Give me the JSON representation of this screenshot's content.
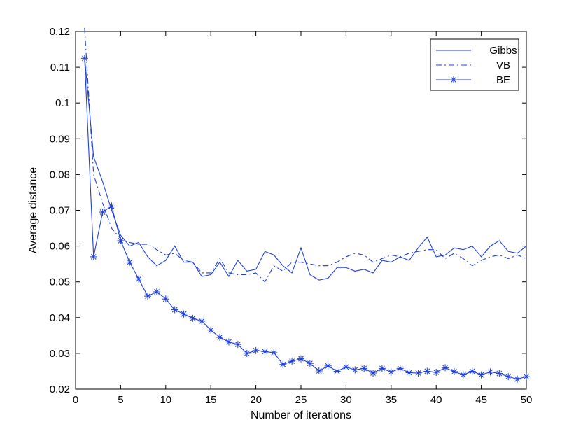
{
  "chart_data": {
    "type": "line",
    "title": "",
    "xlabel": "Number of iterations",
    "ylabel": "Average distance",
    "xlim": [
      0,
      50
    ],
    "ylim": [
      0.02,
      0.12
    ],
    "xticks": [
      0,
      5,
      10,
      15,
      20,
      25,
      30,
      35,
      40,
      45,
      50
    ],
    "yticks": [
      0.02,
      0.03,
      0.04,
      0.05,
      0.06,
      0.07,
      0.08,
      0.09,
      0.1,
      0.11,
      0.12
    ],
    "xtick_labels": [
      "0",
      "5",
      "10",
      "15",
      "20",
      "25",
      "30",
      "35",
      "40",
      "45",
      "50"
    ],
    "ytick_labels": [
      "0.02",
      "0.03",
      "0.04",
      "0.05",
      "0.06",
      "0.07",
      "0.08",
      "0.09",
      "0.1",
      "0.11",
      "0.12"
    ],
    "grid": false,
    "legend_position": "top-right",
    "line_color": "#1f3fd6",
    "x": [
      1,
      2,
      3,
      4,
      5,
      6,
      7,
      8,
      9,
      10,
      11,
      12,
      13,
      14,
      15,
      16,
      17,
      18,
      19,
      20,
      21,
      22,
      23,
      24,
      25,
      26,
      27,
      28,
      29,
      30,
      31,
      32,
      33,
      34,
      35,
      36,
      37,
      38,
      39,
      40,
      41,
      42,
      43,
      44,
      45,
      46,
      47,
      48,
      49,
      50
    ],
    "series": [
      {
        "name": "Gibbs",
        "style": "solid",
        "marker": "none",
        "values": [
          0.113,
          0.085,
          0.078,
          0.07,
          0.063,
          0.06,
          0.061,
          0.057,
          0.0545,
          0.056,
          0.06,
          0.0555,
          0.0555,
          0.0515,
          0.052,
          0.0555,
          0.0515,
          0.056,
          0.053,
          0.0535,
          0.0585,
          0.0575,
          0.0545,
          0.0525,
          0.0595,
          0.052,
          0.0505,
          0.051,
          0.054,
          0.054,
          0.053,
          0.0535,
          0.0525,
          0.056,
          0.0555,
          0.057,
          0.056,
          0.0595,
          0.0625,
          0.057,
          0.0575,
          0.0595,
          0.059,
          0.06,
          0.057,
          0.06,
          0.0615,
          0.0585,
          0.058,
          0.06
        ]
      },
      {
        "name": "VB",
        "style": "dashdot",
        "marker": "none",
        "values": [
          0.121,
          0.08,
          0.072,
          0.065,
          0.062,
          0.061,
          0.0605,
          0.0605,
          0.059,
          0.0575,
          0.058,
          0.056,
          0.0555,
          0.0525,
          0.0525,
          0.0565,
          0.0525,
          0.052,
          0.052,
          0.0525,
          0.05,
          0.0545,
          0.053,
          0.0555,
          0.0555,
          0.055,
          0.0545,
          0.0545,
          0.0555,
          0.057,
          0.058,
          0.0575,
          0.0555,
          0.0565,
          0.0575,
          0.057,
          0.058,
          0.0585,
          0.059,
          0.059,
          0.0565,
          0.058,
          0.0565,
          0.0545,
          0.056,
          0.057,
          0.0575,
          0.0565,
          0.0575,
          0.0565
        ]
      },
      {
        "name": "BE",
        "style": "solid",
        "marker": "asterisk",
        "values": [
          0.1125,
          0.057,
          0.0695,
          0.0712,
          0.0615,
          0.0555,
          0.0508,
          0.046,
          0.0472,
          0.0452,
          0.0422,
          0.041,
          0.0398,
          0.039,
          0.0365,
          0.0345,
          0.0332,
          0.0325,
          0.03,
          0.0308,
          0.0305,
          0.0302,
          0.0269,
          0.0278,
          0.0285,
          0.0272,
          0.0251,
          0.0265,
          0.025,
          0.0262,
          0.0254,
          0.0258,
          0.0245,
          0.0258,
          0.0248,
          0.0258,
          0.0246,
          0.0245,
          0.025,
          0.0247,
          0.026,
          0.0249,
          0.024,
          0.025,
          0.024,
          0.0248,
          0.0244,
          0.0235,
          0.0228,
          0.0235
        ]
      }
    ]
  }
}
